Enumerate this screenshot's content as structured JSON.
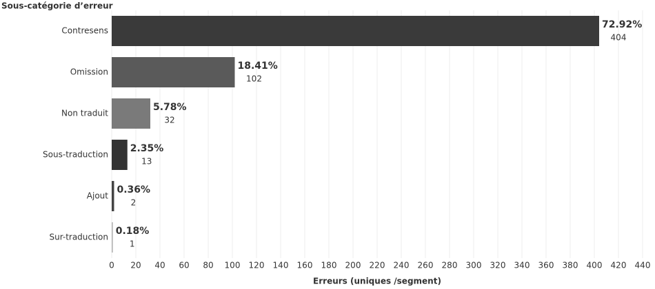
{
  "chart_data": {
    "type": "hbar",
    "y_axis_title": "Sous-catégorie d’erreur",
    "x_axis_title": "Erreurs (uniques /segment)",
    "categories": [
      "Contresens",
      "Omission",
      "Non traduit",
      "Sous-traduction",
      "Ajout",
      "Sur-traduction"
    ],
    "values": [
      404,
      102,
      32,
      13,
      2,
      1
    ],
    "percent_labels": [
      "72.92%",
      "18.41%",
      "5.78%",
      "2.35%",
      "0.36%",
      "0.18%"
    ],
    "colors": [
      "#3a3a3a",
      "#5a5a5a",
      "#7a7a7a",
      "#333333",
      "#444444",
      "#b8b8b8"
    ],
    "xlim": [
      0,
      440
    ],
    "xticks": [
      0,
      20,
      40,
      60,
      80,
      100,
      120,
      140,
      160,
      180,
      200,
      220,
      240,
      260,
      280,
      300,
      320,
      340,
      360,
      380,
      400,
      420,
      440
    ],
    "grid": true
  }
}
